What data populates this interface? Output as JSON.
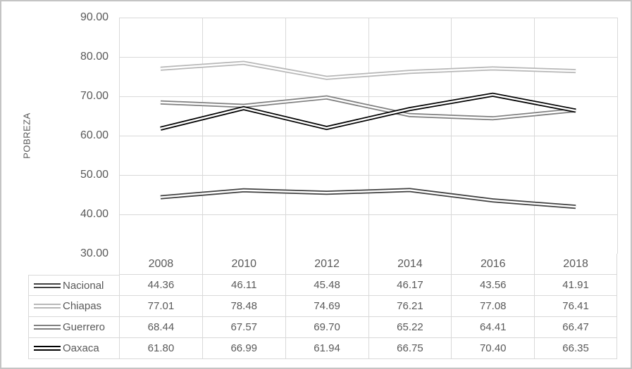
{
  "chart_data": {
    "type": "line",
    "title": "",
    "xlabel": "",
    "ylabel": "POBREZA",
    "ylim": [
      30,
      90
    ],
    "y_ticks": [
      "90.00",
      "80.00",
      "70.00",
      "60.00",
      "50.00",
      "40.00",
      "30.00"
    ],
    "categories": [
      "2008",
      "2010",
      "2012",
      "2014",
      "2016",
      "2018"
    ],
    "series": [
      {
        "name": "Nacional",
        "color": "#404040",
        "values": [
          44.36,
          46.11,
          45.48,
          46.17,
          43.56,
          41.91
        ],
        "display": [
          "44.36",
          "46.11",
          "45.48",
          "46.17",
          "43.56",
          "41.91"
        ]
      },
      {
        "name": "Chiapas",
        "color": "#b7b7b7",
        "values": [
          77.01,
          78.48,
          74.69,
          76.21,
          77.08,
          76.41
        ],
        "display": [
          "77.01",
          "78.48",
          "74.69",
          "76.21",
          "77.08",
          "76.41"
        ]
      },
      {
        "name": "Guerrero",
        "color": "#7f7f7f",
        "values": [
          68.44,
          67.57,
          69.7,
          65.22,
          64.41,
          66.47
        ],
        "display": [
          "68.44",
          "67.57",
          "69.70",
          "65.22",
          "64.41",
          "66.47"
        ]
      },
      {
        "name": "Oaxaca",
        "color": "#000000",
        "values": [
          61.8,
          66.99,
          61.94,
          66.75,
          70.4,
          66.35
        ],
        "display": [
          "61.80",
          "66.99",
          "61.94",
          "66.75",
          "70.40",
          "66.35"
        ]
      }
    ],
    "grid": true,
    "line_style": "double",
    "legend_position": "table-left"
  },
  "colors": {
    "text": "#595959",
    "gridline": "#d9d9d9",
    "table_border": "#d9d9d9",
    "frame_border": "#c4c4c4",
    "background": "#ffffff"
  }
}
